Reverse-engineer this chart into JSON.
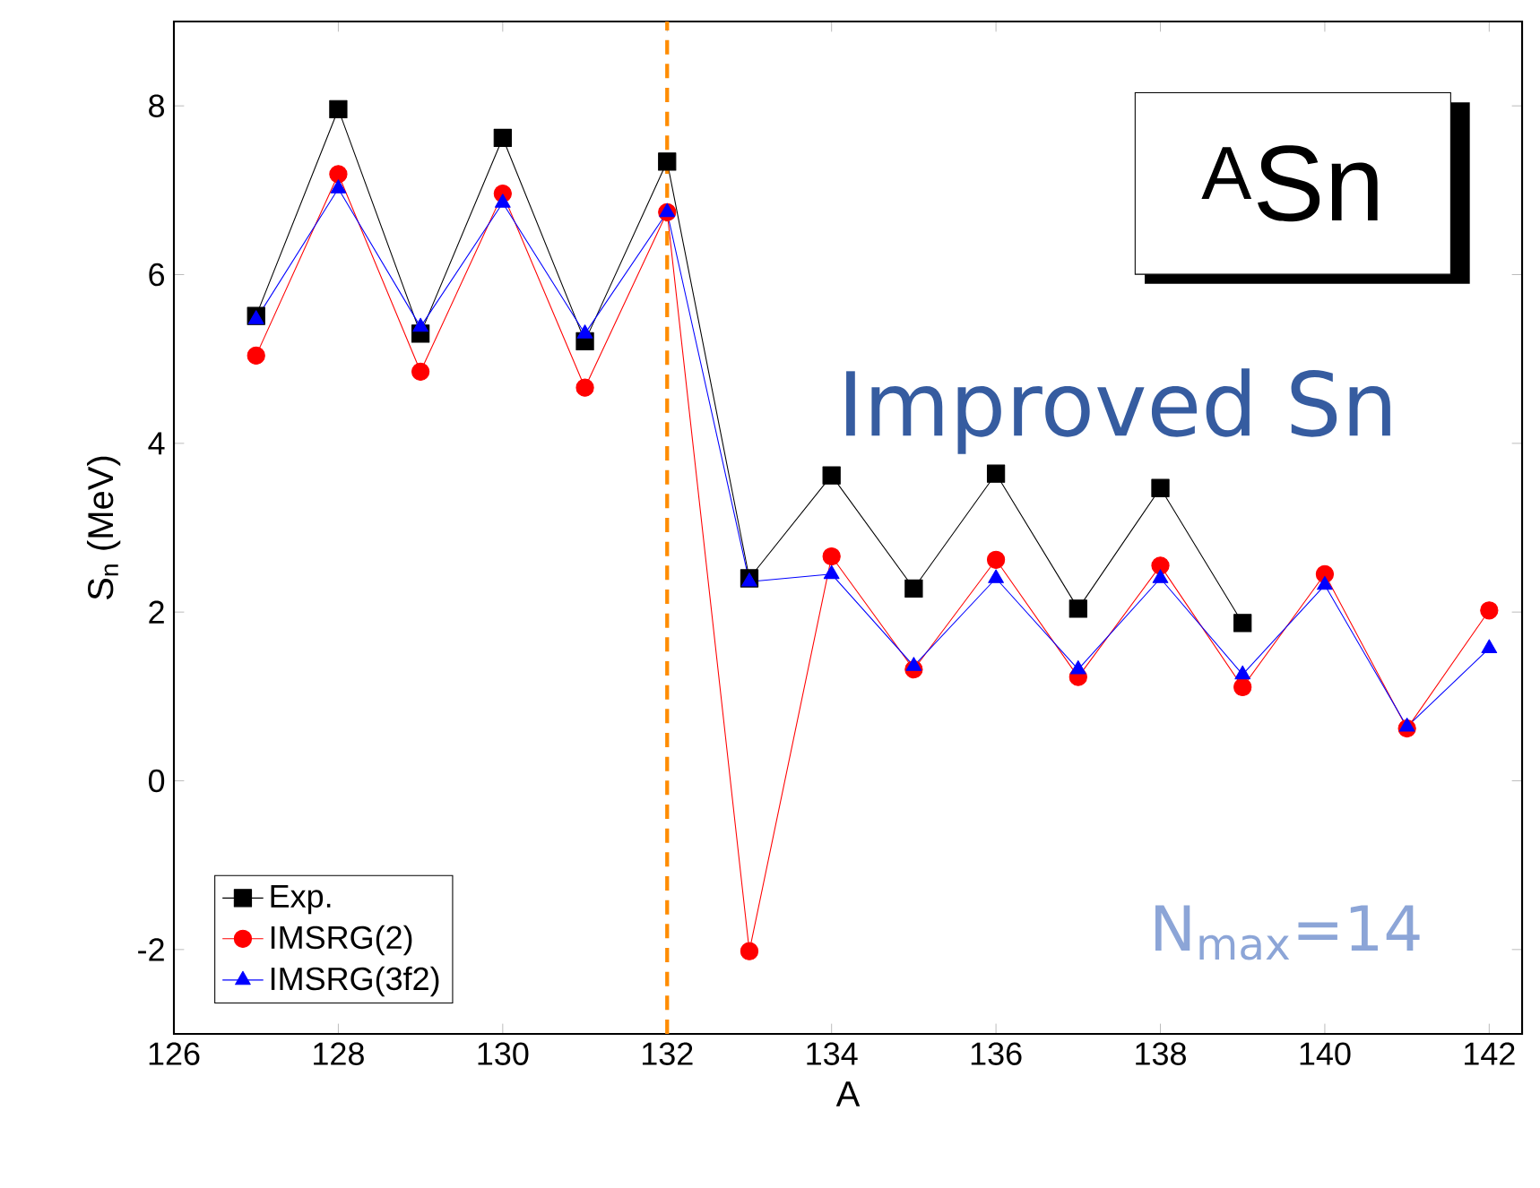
{
  "chart_data": {
    "type": "line",
    "xlabel": "A",
    "ylabel": "S$_{n}$ (MeV)",
    "x": [
      127,
      128,
      129,
      130,
      131,
      132,
      133,
      134,
      135,
      136,
      137,
      138,
      139,
      140,
      141,
      142
    ],
    "series": [
      {
        "name": "Exp.",
        "color": "#000000",
        "marker": "square",
        "values": [
          5.51,
          7.96,
          5.3,
          7.62,
          5.21,
          7.34,
          2.4,
          3.62,
          2.28,
          3.64,
          2.04,
          3.47,
          1.87,
          null,
          null,
          null
        ]
      },
      {
        "name": "IMSRG(2)",
        "color": "#ff0000",
        "marker": "circle",
        "values": [
          5.04,
          7.19,
          4.85,
          6.96,
          4.66,
          6.74,
          -2.02,
          2.66,
          1.32,
          2.62,
          1.23,
          2.55,
          1.11,
          2.45,
          0.62,
          2.02
        ]
      },
      {
        "name": "IMSRG(3f2)",
        "color": "#0000ff",
        "marker": "triangle",
        "values": [
          5.47,
          7.02,
          5.38,
          6.85,
          5.3,
          6.74,
          2.36,
          2.45,
          1.36,
          2.4,
          1.32,
          2.4,
          1.26,
          2.32,
          0.64,
          1.57
        ]
      }
    ],
    "xlim": [
      126,
      142.4
    ],
    "ylim": [
      -3,
      9
    ],
    "xticks": [
      126,
      128,
      130,
      132,
      134,
      136,
      138,
      140,
      142
    ],
    "yticks": [
      -2,
      0,
      2,
      4,
      6,
      8
    ],
    "grid": false,
    "legend": "bottom left",
    "line_style": "solid",
    "ref_lines": [
      {
        "axis": "x",
        "value": 132,
        "color": "#ff8c00",
        "line_style": "dashed"
      }
    ],
    "annotations": [
      "$^{A}$Sn",
      "Improved Sn",
      "N$_{max}$=14"
    ]
  }
}
